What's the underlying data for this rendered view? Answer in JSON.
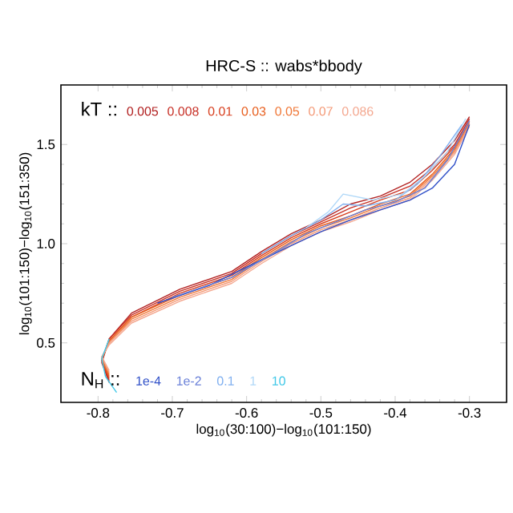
{
  "chart_data": {
    "type": "line",
    "title": "HRC-S :: wabs*bbody",
    "xlabel": "log$_{10}$(30:100)−log$_{10}$(101:150)",
    "ylabel": "log$_{10}$(101:150)−log$_{10}$(151:350)",
    "annotations": [
      "kT ::",
      "N$_{H}$ ::"
    ],
    "xlim": [
      -0.85,
      -0.25
    ],
    "ylim": [
      0.2,
      1.8
    ],
    "xticks": [
      -0.8,
      -0.7,
      -0.6,
      -0.5,
      -0.4,
      -0.3
    ],
    "yticks": [
      0.5,
      {
        "value": 1.0,
        "label": "1.0"
      },
      1.5
    ],
    "series": [
      {
        "name": "0.005",
        "color": "#b22222",
        "x": [
          -0.785,
          -0.795,
          -0.785,
          -0.755,
          -0.69,
          -0.62,
          -0.58,
          -0.54,
          -0.5,
          -0.46,
          -0.42,
          -0.38,
          -0.35,
          -0.32,
          -0.3
        ],
        "values": [
          0.3,
          0.4,
          0.52,
          0.65,
          0.77,
          0.86,
          0.96,
          1.05,
          1.12,
          1.2,
          1.24,
          1.31,
          1.4,
          1.52,
          1.64
        ]
      },
      {
        "name": "0.008",
        "color": "#c83228",
        "x": [
          -0.785,
          -0.795,
          -0.785,
          -0.755,
          -0.69,
          -0.62,
          -0.58,
          -0.54,
          -0.5,
          -0.46,
          -0.42,
          -0.38,
          -0.35,
          -0.32,
          -0.3
        ],
        "values": [
          0.31,
          0.41,
          0.52,
          0.64,
          0.76,
          0.85,
          0.95,
          1.04,
          1.11,
          1.18,
          1.23,
          1.29,
          1.38,
          1.5,
          1.63
        ]
      },
      {
        "name": "0.01",
        "color": "#d84020",
        "x": [
          -0.785,
          -0.795,
          -0.785,
          -0.755,
          -0.69,
          -0.62,
          -0.58,
          -0.54,
          -0.5,
          -0.46,
          -0.42,
          -0.38,
          -0.35,
          -0.32,
          -0.3
        ],
        "values": [
          0.32,
          0.41,
          0.51,
          0.63,
          0.75,
          0.84,
          0.94,
          1.03,
          1.1,
          1.16,
          1.22,
          1.27,
          1.37,
          1.49,
          1.62
        ]
      },
      {
        "name": "0.03",
        "color": "#e86020",
        "x": [
          -0.785,
          -0.795,
          -0.785,
          -0.755,
          -0.69,
          -0.62,
          -0.58,
          -0.54,
          -0.5,
          -0.46,
          -0.42,
          -0.38,
          -0.35,
          -0.32,
          -0.3
        ],
        "values": [
          0.33,
          0.42,
          0.51,
          0.63,
          0.74,
          0.83,
          0.93,
          1.02,
          1.09,
          1.14,
          1.2,
          1.25,
          1.35,
          1.48,
          1.61
        ]
      },
      {
        "name": "0.05",
        "color": "#f07838",
        "x": [
          -0.785,
          -0.795,
          -0.785,
          -0.755,
          -0.69,
          -0.62,
          -0.58,
          -0.54,
          -0.5,
          -0.46,
          -0.42,
          -0.38,
          -0.35,
          -0.32,
          -0.3
        ],
        "values": [
          0.34,
          0.42,
          0.5,
          0.62,
          0.73,
          0.82,
          0.92,
          1.01,
          1.08,
          1.13,
          1.19,
          1.24,
          1.34,
          1.47,
          1.6
        ]
      },
      {
        "name": "0.07",
        "color": "#f49a78",
        "x": [
          -0.785,
          -0.795,
          -0.785,
          -0.755,
          -0.69,
          -0.62,
          -0.58,
          -0.54,
          -0.5,
          -0.46,
          -0.42,
          -0.38,
          -0.35,
          -0.32,
          -0.3
        ],
        "values": [
          0.35,
          0.43,
          0.5,
          0.61,
          0.72,
          0.81,
          0.91,
          1.0,
          1.07,
          1.12,
          1.18,
          1.23,
          1.33,
          1.46,
          1.6
        ]
      },
      {
        "name": "0.086",
        "color": "#f4a890",
        "x": [
          -0.785,
          -0.795,
          -0.785,
          -0.755,
          -0.69,
          -0.62,
          -0.58,
          -0.54,
          -0.5,
          -0.46,
          -0.42,
          -0.38,
          -0.35,
          -0.32,
          -0.3
        ],
        "values": [
          0.36,
          0.43,
          0.49,
          0.6,
          0.71,
          0.8,
          0.9,
          0.99,
          1.06,
          1.11,
          1.17,
          1.22,
          1.32,
          1.45,
          1.59
        ]
      },
      {
        "name": "1e-4",
        "color": "#3050c8",
        "x": [
          -0.72,
          -0.65,
          -0.59,
          -0.54,
          -0.5,
          -0.46,
          -0.42,
          -0.38,
          -0.35,
          -0.32,
          -0.3
        ],
        "values": [
          0.7,
          0.79,
          0.9,
          0.99,
          1.06,
          1.12,
          1.17,
          1.22,
          1.28,
          1.4,
          1.6
        ]
      },
      {
        "name": "1e-2",
        "color": "#6a80d8",
        "x": [
          -0.7,
          -0.62,
          -0.56,
          -0.52,
          -0.48,
          -0.44,
          -0.4,
          -0.36,
          -0.33,
          -0.3
        ],
        "values": [
          0.73,
          0.83,
          0.96,
          1.05,
          1.11,
          1.17,
          1.21,
          1.28,
          1.42,
          1.62
        ]
      },
      {
        "name": "0.1",
        "color": "#80b0f0",
        "x": [
          -0.58,
          -0.54,
          -0.5,
          -0.47,
          -0.44,
          -0.4,
          -0.37,
          -0.34,
          -0.31
        ],
        "values": [
          0.95,
          1.04,
          1.12,
          1.2,
          1.19,
          1.22,
          1.3,
          1.44,
          1.6
        ]
      },
      {
        "name": "1",
        "color": "#b0d8f8",
        "x": [
          -0.52,
          -0.49,
          -0.47,
          -0.43,
          -0.39,
          -0.36,
          -0.33,
          -0.305
        ],
        "values": [
          1.08,
          1.16,
          1.25,
          1.22,
          1.25,
          1.34,
          1.46,
          1.63
        ]
      },
      {
        "name": "10",
        "color": "#40c8e8",
        "x": [
          -0.775,
          -0.79,
          -0.795,
          -0.785
        ],
        "values": [
          0.25,
          0.33,
          0.42,
          0.52
        ]
      }
    ]
  }
}
